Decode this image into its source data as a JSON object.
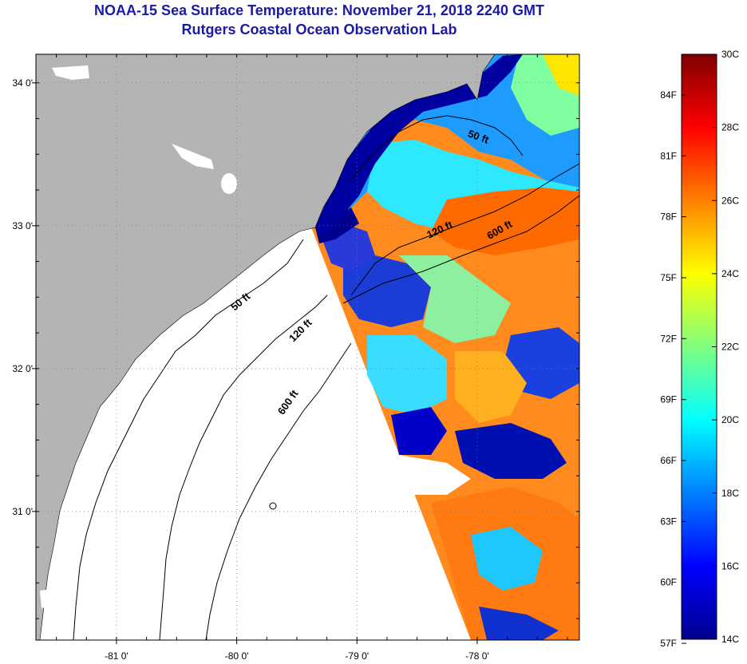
{
  "title": {
    "line1": "NOAA-15 Sea Surface Temperature:  November 21, 2018 2240 GMT",
    "line2": "Rutgers Coastal Ocean Observation Lab"
  },
  "map": {
    "land_color": "#b4b4b4",
    "nodata_color": "#ffffff",
    "lon_range": [
      -81.67,
      -77.15
    ],
    "lat_range": [
      30.1,
      34.2
    ],
    "lon_ticks": [
      {
        "value": -81,
        "label": "-81 0'"
      },
      {
        "value": -80,
        "label": "-80 0'"
      },
      {
        "value": -79,
        "label": "-79 0'"
      },
      {
        "value": -78,
        "label": "-78 0'"
      }
    ],
    "lat_ticks": [
      {
        "value": 34,
        "label": "34 0'"
      },
      {
        "value": 33,
        "label": "33 0'"
      },
      {
        "value": 32,
        "label": "32 0'"
      },
      {
        "value": 31,
        "label": "31 0'"
      }
    ],
    "isobath_labels": [
      {
        "text": "50 ft",
        "lon": -78.0,
        "lat": 33.6,
        "angle": 20
      },
      {
        "text": "120 ft",
        "lon": -78.3,
        "lat": 32.95,
        "angle": -25
      },
      {
        "text": "600 ft",
        "lon": -77.8,
        "lat": 32.95,
        "angle": -30
      },
      {
        "text": "50 ft",
        "lon": -79.95,
        "lat": 32.45,
        "angle": -40
      },
      {
        "text": "120 ft",
        "lon": -79.45,
        "lat": 32.25,
        "angle": -45
      },
      {
        "text": "600 ft",
        "lon": -79.55,
        "lat": 31.75,
        "angle": -55
      }
    ]
  },
  "colorbar": {
    "min_c": 14,
    "max_c": 30,
    "celsius_labels": [
      "30C",
      "28C",
      "26C",
      "24C",
      "22C",
      "20C",
      "18C",
      "16C",
      "14C"
    ],
    "fahrenheit_labels": [
      "84F",
      "81F",
      "78F",
      "75F",
      "72F",
      "69F",
      "66F",
      "63F",
      "60F",
      "57F"
    ],
    "fahrenheit_values": [
      84,
      81,
      78,
      75,
      72,
      69,
      66,
      63,
      60,
      57
    ],
    "colormap": [
      "#00008f",
      "#0000ff",
      "#0080ff",
      "#00ffff",
      "#80ff80",
      "#ffff00",
      "#ff8000",
      "#ff0000",
      "#800000"
    ]
  }
}
